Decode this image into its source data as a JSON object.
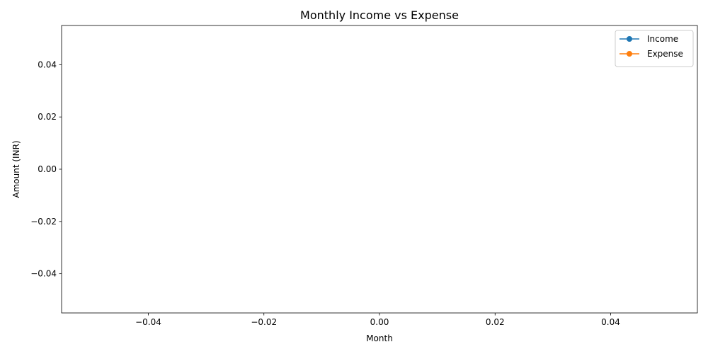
{
  "chart_data": {
    "type": "line",
    "title": "Monthly Income vs Expense",
    "xlabel": "Month",
    "ylabel": "Amount (INR)",
    "xlim": [
      -0.055,
      0.055
    ],
    "ylim": [
      -0.055,
      0.055
    ],
    "xticks": [
      -0.04,
      -0.02,
      0.0,
      0.02,
      0.04
    ],
    "xtick_labels": [
      "−0.04",
      "−0.02",
      "0.00",
      "0.02",
      "0.04"
    ],
    "yticks": [
      -0.04,
      -0.02,
      0.0,
      0.02,
      0.04
    ],
    "ytick_labels": [
      "−0.04",
      "−0.02",
      "0.00",
      "0.02",
      "0.04"
    ],
    "grid": false,
    "legend_position": "top-right",
    "series": [
      {
        "name": "Income",
        "color": "#1f77b4",
        "marker": "circle",
        "x": [],
        "y": []
      },
      {
        "name": "Expense",
        "color": "#ff7f0e",
        "marker": "circle",
        "x": [],
        "y": []
      }
    ]
  }
}
